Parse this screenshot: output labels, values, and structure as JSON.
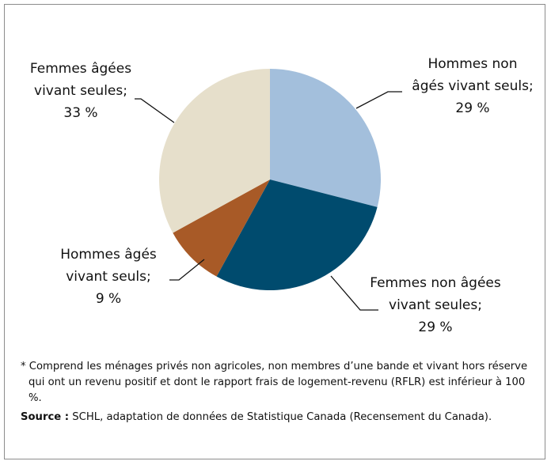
{
  "chart_data": {
    "type": "pie",
    "categories": [
      "Hommes non âgés vivant seuls;",
      "Femmes non âgées vivant seules;",
      "Hommes âgés vivant seuls;",
      "Femmes âgées vivant seules;"
    ],
    "values": [
      29,
      29,
      9,
      33
    ],
    "value_labels": [
      "29 %",
      "29 %",
      "9 %",
      "33 %"
    ],
    "colors": [
      "#a3bfdc",
      "#004b6e",
      "#a85a27",
      "#e6dfcb"
    ],
    "note": "* Comprend les ménages privés non agricoles, non membres d’une bande et vivant hors réserve qui ont un revenu positif et dont le rapport frais de logement-revenu (RFLR) est inférieur à 100 %.",
    "source_label": "Source :",
    "source": "SCHL, adaptation de données de Statistique Canada (Recensement du Canada)."
  }
}
